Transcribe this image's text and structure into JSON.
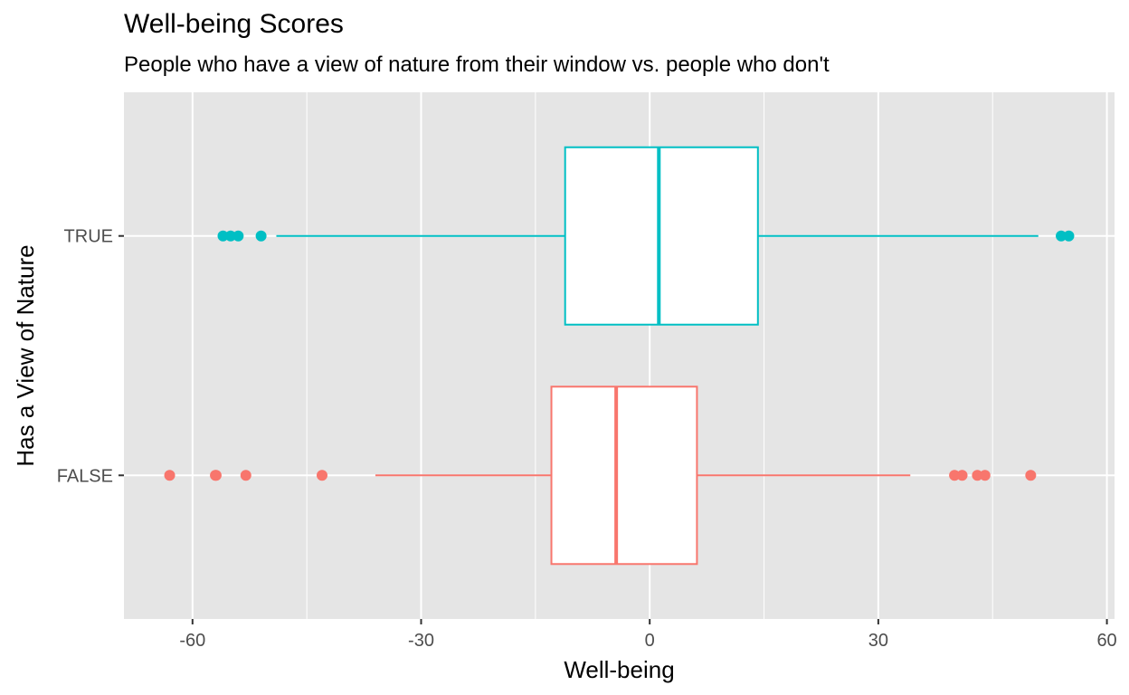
{
  "chart_data": {
    "type": "boxplot",
    "orientation": "horizontal",
    "title": "Well-being Scores",
    "subtitle": "People who have a view of nature from their window vs. people who don't",
    "xlabel": "Well-being",
    "ylabel": "Has a View of Nature",
    "xlim": [
      -69,
      61
    ],
    "x_ticks": [
      -60,
      -30,
      0,
      30,
      60
    ],
    "x_tick_labels": [
      "-60",
      "-30",
      "0",
      "30",
      "60"
    ],
    "categories": [
      "FALSE",
      "TRUE"
    ],
    "grid": true,
    "background": "#e5e5e5",
    "series": [
      {
        "category": "FALSE",
        "color": "#f8766d",
        "whisker_low": -36,
        "q1": -12.9,
        "median": -4.4,
        "q3": 6.2,
        "whisker_high": 34.2,
        "outliers": [
          -63,
          -57,
          -56.9,
          -53,
          -43,
          40,
          41,
          43,
          44,
          50
        ]
      },
      {
        "category": "TRUE",
        "color": "#00bfc4",
        "whisker_low": -49,
        "q1": -11.1,
        "median": 1.2,
        "q3": 14.2,
        "whisker_high": 51,
        "outliers": [
          -56,
          -55,
          -54,
          -51,
          54,
          55
        ]
      }
    ]
  }
}
